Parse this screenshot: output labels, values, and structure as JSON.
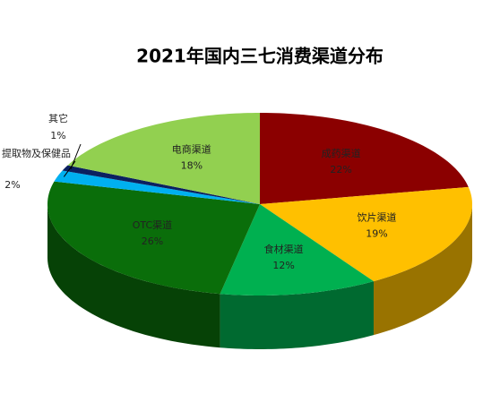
{
  "chart_data": {
    "type": "pie3d",
    "title": "2021年国内三七消费渠道分布",
    "categories": [
      "成药渠道",
      "饮片渠道",
      "食材渠道",
      "OTC渠道",
      "提取物及保健品",
      "其它",
      "电商渠道"
    ],
    "values": [
      22,
      19,
      12,
      26,
      2,
      1,
      18
    ],
    "value_labels": [
      "22%",
      "19%",
      "12%",
      "26%",
      "2%",
      "1%",
      "18%"
    ],
    "colors": [
      "#8b0000",
      "#ffc000",
      "#00b050",
      "#0a6e0a",
      "#00b0f0",
      "#0b2060",
      "#92d050"
    ]
  }
}
